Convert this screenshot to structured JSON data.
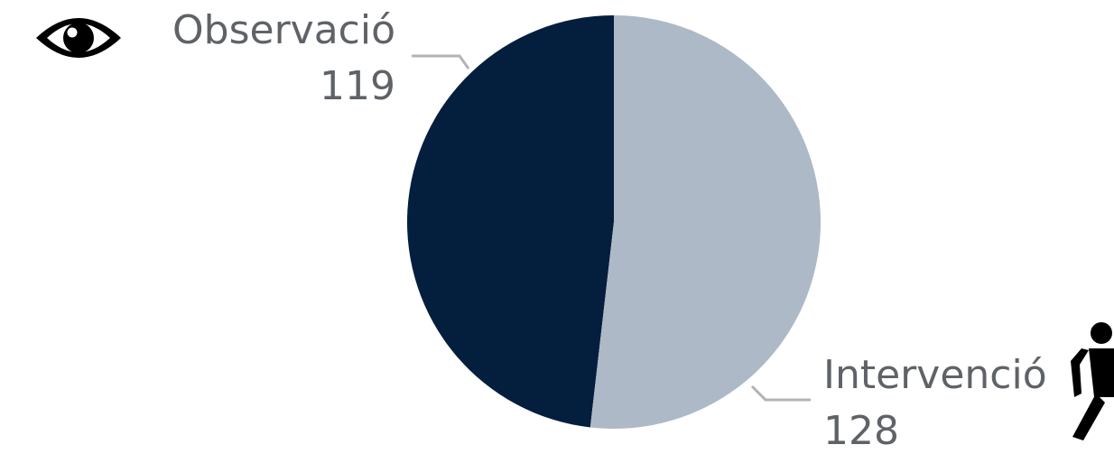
{
  "chart_data": {
    "type": "pie",
    "slices": [
      {
        "label": "Observació",
        "value": 119,
        "color": "#041e3e"
      },
      {
        "label": "Intervenció",
        "value": 128,
        "color": "#adb9c6"
      }
    ],
    "leader_line_color": "#b3b3b3",
    "icons": {
      "observacio": "eye-icon",
      "intervencio": "walking-person-icon"
    }
  }
}
